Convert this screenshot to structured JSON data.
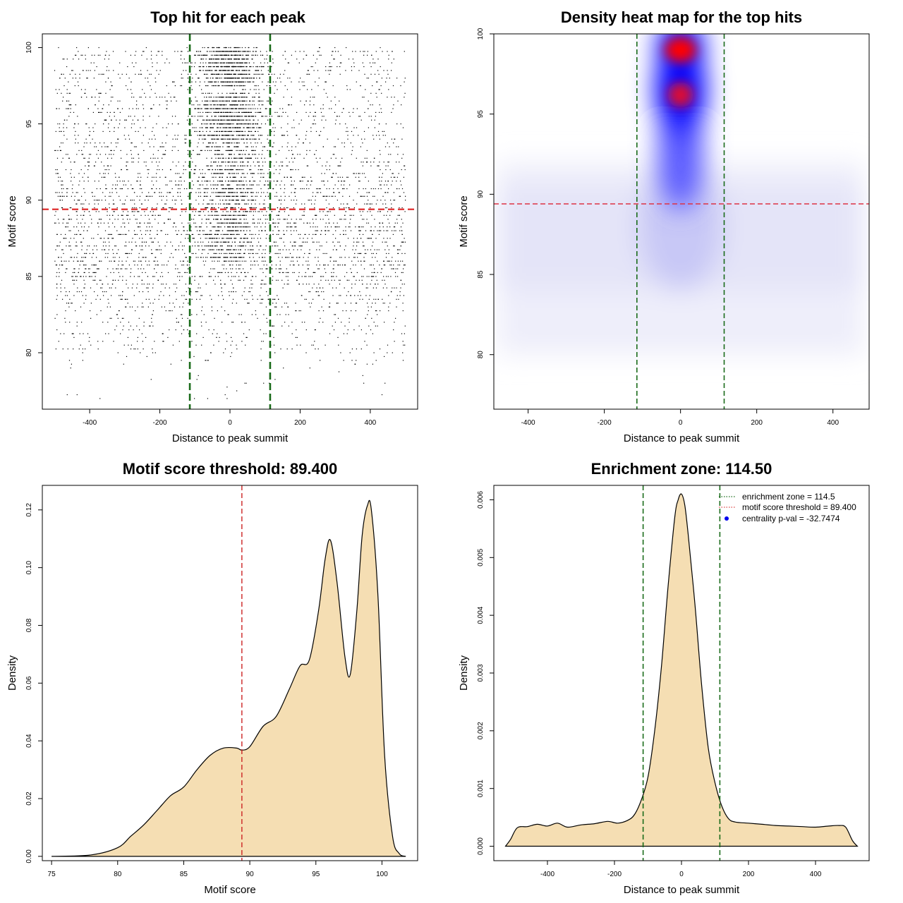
{
  "chart_data": [
    {
      "id": "scatter",
      "type": "scatter",
      "title": "Top hit for each peak",
      "xlabel": "Distance to peak summit",
      "ylabel": "Motif score",
      "xlim": [
        -535,
        535
      ],
      "ylim": [
        76.3,
        100.9
      ],
      "xticks": [
        -400,
        -200,
        0,
        200,
        400
      ],
      "yticks": [
        80,
        85,
        90,
        95,
        100
      ],
      "x_range_of_points": [
        -500,
        500
      ],
      "score_range_of_points": [
        77,
        100
      ],
      "threshold": 89.4,
      "enrichment_zone": [
        -114.5,
        114.5
      ],
      "point_color": "#000000",
      "threshold_color": "#dd2222",
      "zone_color": "#1a6b1a"
    },
    {
      "id": "heatmap",
      "type": "heatmap",
      "title": "Density heat map for the top hits",
      "xlabel": "Distance to peak summit",
      "ylabel": "Motif score",
      "xlim": [
        -490,
        495
      ],
      "ylim": [
        76.6,
        100
      ],
      "xticks": [
        -400,
        -200,
        0,
        200,
        400
      ],
      "yticks": [
        80,
        85,
        90,
        95,
        100
      ],
      "threshold": 89.4,
      "enrichment_zone": [
        -114.5,
        114.5
      ],
      "hotspots": [
        {
          "x": 0,
          "score": 99,
          "level": "high"
        },
        {
          "x": 0,
          "score": 96.2,
          "level": "high"
        }
      ],
      "low_color": "#ffffff",
      "mid_color": "#0000ff",
      "high_color": "#ff0000"
    },
    {
      "id": "score_density",
      "type": "area",
      "title": "Motif score threshold: 89.400",
      "xlabel": "Motif score",
      "ylabel": "Density",
      "xlim": [
        74.3,
        102.7
      ],
      "ylim": [
        -0.0015,
        0.1285
      ],
      "xticks": [
        75,
        80,
        85,
        90,
        95,
        100
      ],
      "yticks": [
        0.0,
        0.02,
        0.04,
        0.06,
        0.08,
        0.1,
        0.12
      ],
      "ytick_labels": [
        "0.00",
        "0.02",
        "0.04",
        "0.06",
        "0.08",
        "0.10",
        "0.12"
      ],
      "x": [
        75,
        78,
        80,
        81,
        82,
        83,
        84,
        85,
        86,
        87,
        88,
        89,
        89.4,
        90,
        91,
        92,
        93,
        93.8,
        94.5,
        95.2,
        95.7,
        96.1,
        96.6,
        97.2,
        97.6,
        98.1,
        98.5,
        98.9,
        99.2,
        99.7,
        100.2,
        100.8,
        101.3,
        101.8
      ],
      "y": [
        0,
        0.0005,
        0.003,
        0.007,
        0.011,
        0.016,
        0.021,
        0.024,
        0.03,
        0.035,
        0.0375,
        0.0375,
        0.0368,
        0.038,
        0.045,
        0.0485,
        0.058,
        0.066,
        0.068,
        0.085,
        0.103,
        0.1095,
        0.095,
        0.069,
        0.063,
        0.085,
        0.111,
        0.1215,
        0.12,
        0.09,
        0.035,
        0.007,
        0.001,
        0
      ],
      "threshold": 89.4,
      "fill_color": "#f5deb3",
      "threshold_color": "#cc2222"
    },
    {
      "id": "distance_density",
      "type": "area",
      "title": "Enrichment zone: 114.50",
      "xlabel": "Distance to peak summit",
      "ylabel": "Density",
      "xlim": [
        -560,
        560
      ],
      "ylim": [
        -0.00025,
        0.00625
      ],
      "xticks": [
        -400,
        -200,
        0,
        200,
        400
      ],
      "yticks": [
        0.0,
        0.001,
        0.002,
        0.003,
        0.004,
        0.005,
        0.006
      ],
      "ytick_labels": [
        "0.000",
        "0.001",
        "0.002",
        "0.003",
        "0.004",
        "0.005",
        "0.006"
      ],
      "x": [
        -525,
        -510,
        -490,
        -460,
        -430,
        -400,
        -370,
        -340,
        -300,
        -260,
        -220,
        -190,
        -160,
        -140,
        -120,
        -100,
        -80,
        -60,
        -40,
        -20,
        -10,
        0,
        10,
        20,
        40,
        60,
        80,
        100,
        120,
        140,
        160,
        200,
        240,
        280,
        320,
        360,
        400,
        440,
        470,
        490,
        510,
        525
      ],
      "y": [
        0,
        0.00012,
        0.00032,
        0.00034,
        0.00038,
        0.00035,
        0.0004,
        0.00033,
        0.00037,
        0.00039,
        0.00043,
        0.0004,
        0.00045,
        0.00055,
        0.0008,
        0.0012,
        0.002,
        0.0031,
        0.0045,
        0.0057,
        0.006,
        0.0061,
        0.0059,
        0.0054,
        0.0042,
        0.0028,
        0.0017,
        0.0011,
        0.0007,
        0.00048,
        0.00042,
        0.0004,
        0.00038,
        0.00036,
        0.00035,
        0.00034,
        0.00033,
        0.00035,
        0.00036,
        0.00033,
        0.0001,
        0
      ],
      "enrichment_zone": [
        -114.5,
        114.5
      ],
      "fill_color": "#f5deb3",
      "zone_color": "#1a6b1a",
      "legend": [
        {
          "label": "enrichment zone = 114.5",
          "kind": "dotted-line",
          "color": "#1a6b1a"
        },
        {
          "label": "motif score threshold = 89.400",
          "kind": "dotted-line",
          "color": "#dd4444"
        },
        {
          "label": "centrality p-val = -32.7474",
          "kind": "point",
          "color": "#0000ee"
        }
      ]
    }
  ]
}
